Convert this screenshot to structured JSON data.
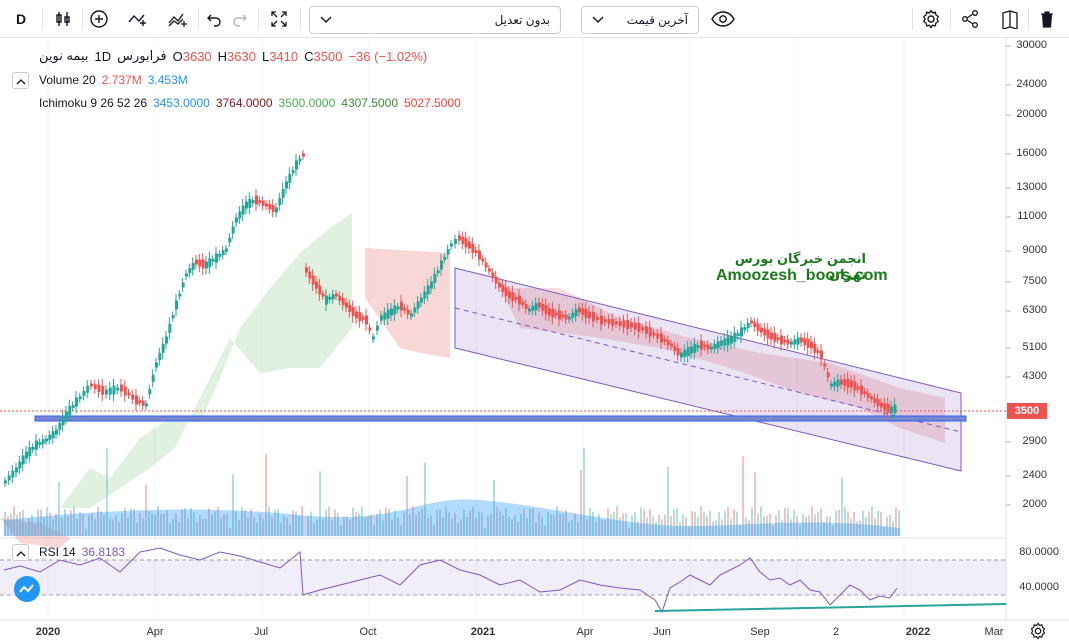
{
  "toolbar": {
    "symbol_button": "D",
    "adjust_dropdown": "بدون تعدیل",
    "price_dropdown": "آخرین قیمت"
  },
  "legend": {
    "symbol": "بیمه نوین",
    "interval": "1D",
    "exchange": "فرابورس",
    "o_label": "O",
    "o_val": "3630",
    "h_label": "H",
    "h_val": "3630",
    "l_label": "L",
    "l_val": "3410",
    "c_label": "C",
    "c_val": "3500",
    "change": "−36 (−1.02%)",
    "volume_label": "Volume 20",
    "volume_v1": "2.737M",
    "volume_v2": "3.453M",
    "ichimoku_label": "Ichimoku 9 26 52 26",
    "ichimoku_values": [
      "3453.0000",
      "3764.0000",
      "3500.0000",
      "4307.5000",
      "5027.5000"
    ],
    "ichimoku_colors": [
      "#2196f3",
      "#801922",
      "#4caf50",
      "#388e3c",
      "#f44336"
    ],
    "rsi_label": "RSI 14",
    "rsi_value": "36.8183"
  },
  "watermark": {
    "line1": "انجمن خبرگان بورس تهران",
    "line2": "Amoozesh_boors.com"
  },
  "price_axis": [
    "30000",
    "24000",
    "20000",
    "16000",
    "13000",
    "11000",
    "9000",
    "7500",
    "6300",
    "5100",
    "4300",
    "3500",
    "2900",
    "2400",
    "2000"
  ],
  "current_price": "3500",
  "rsi_axis": [
    "80.0000",
    "40.0000"
  ],
  "time_axis": [
    "2020",
    "Apr",
    "Jul",
    "Oct",
    "2021",
    "Apr",
    "Jun",
    "Sep",
    "2",
    "2022",
    "Mar"
  ],
  "colors": {
    "up": "#26a69a",
    "down": "#ef5350",
    "rsi": "#7e57c2",
    "channel": "#7e57c2",
    "support": "#2962ff",
    "trend": "#26a69a"
  }
}
